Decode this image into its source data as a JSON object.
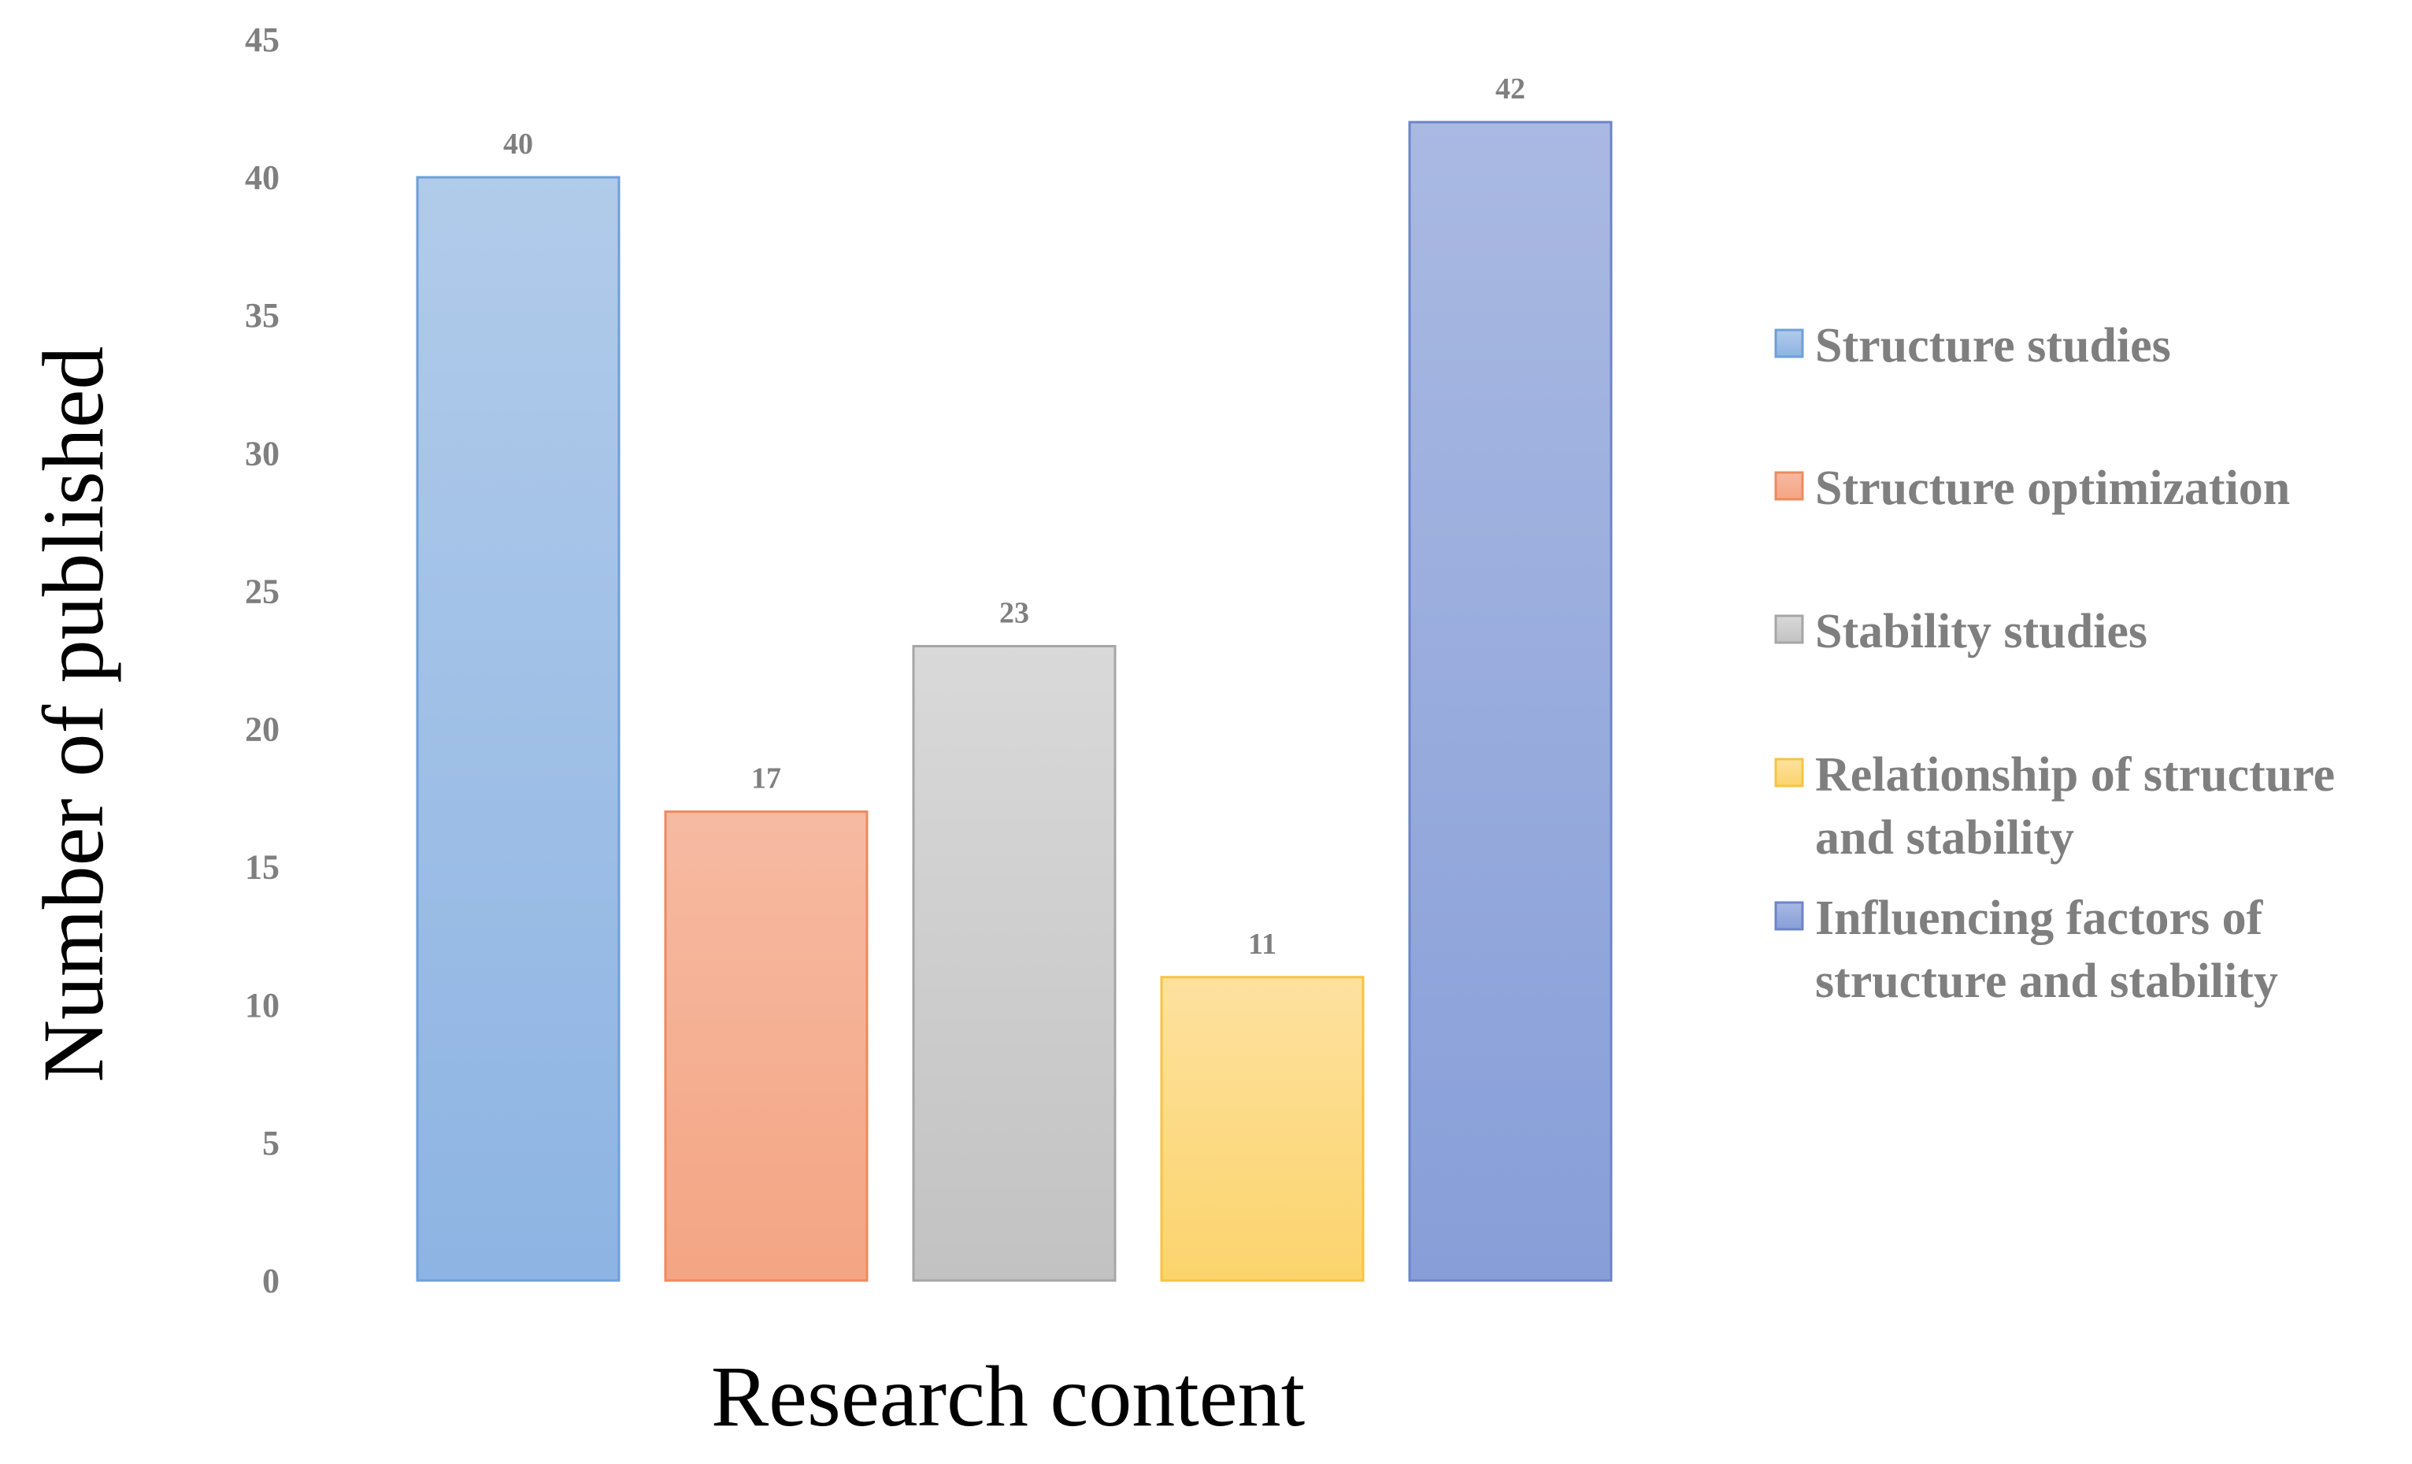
{
  "chart_data": {
    "type": "bar",
    "title": "",
    "xlabel": "Research content",
    "ylabel": "Number of published",
    "ylim": [
      0,
      45
    ],
    "yticks": [
      0,
      5,
      10,
      15,
      20,
      25,
      30,
      35,
      40,
      45
    ],
    "grid": false,
    "legend_position": "right",
    "series": [
      {
        "name": "Structure studies",
        "value": 40,
        "color_top": "#b1cbea",
        "color_bottom": "#8db4e3",
        "stroke": "#6f9fd8"
      },
      {
        "name": "Structure optimization",
        "value": 17,
        "color_top": "#f6baa2",
        "color_bottom": "#f4a583",
        "stroke": "#ed8a5e"
      },
      {
        "name": "Stability studies",
        "value": 23,
        "color_top": "#d9d9d9",
        "color_bottom": "#c2c2c2",
        "stroke": "#a6a6a6"
      },
      {
        "name": "Relationship of structure and stability",
        "value": 11,
        "color_top": "#fde19e",
        "color_bottom": "#fcd46d",
        "stroke": "#f6c343"
      },
      {
        "name": "Influencing factors of structure and stability",
        "value": 42,
        "color_top": "#a9b9e2",
        "color_bottom": "#879ed8",
        "stroke": "#6d85c9"
      }
    ],
    "legend_lines": [
      [
        "Structure studies"
      ],
      [
        "Structure optimization"
      ],
      [
        "Stability studies"
      ],
      [
        "Relationship of structure",
        "and stability"
      ],
      [
        "Influencing factors of",
        "structure and stability"
      ]
    ]
  }
}
